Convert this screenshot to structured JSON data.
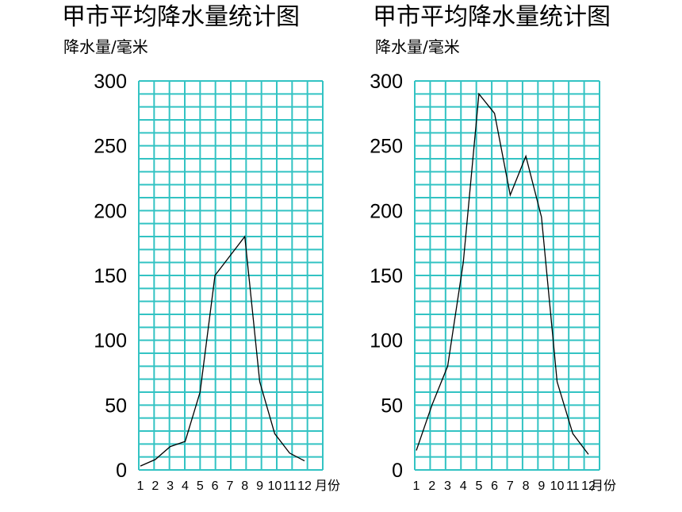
{
  "colors": {
    "grid": "#33c3c3",
    "line": "#000000",
    "background": "#ffffff"
  },
  "chart_data": [
    {
      "type": "line",
      "title": "甲市平均降水量统计图",
      "ylabel": "降水量/毫米",
      "xlabel": "月份",
      "x": [
        1,
        2,
        3,
        4,
        5,
        6,
        7,
        8,
        9,
        10,
        11,
        12
      ],
      "x_tick_labels": [
        "1",
        "2",
        "3",
        "4",
        "5",
        "6",
        "7",
        "8",
        "9",
        "10",
        "11",
        "12"
      ],
      "y_tick_labels": [
        "0",
        "50",
        "100",
        "150",
        "200",
        "250",
        "300"
      ],
      "ylim": [
        0,
        300
      ],
      "grid": true,
      "series": [
        {
          "values": [
            3,
            8,
            18,
            22,
            60,
            150,
            165,
            180,
            68,
            28,
            13,
            7
          ]
        }
      ]
    },
    {
      "type": "line",
      "title": "甲市平均降水量统计图",
      "ylabel": "降水量/毫米",
      "xlabel": "月份",
      "x": [
        1,
        2,
        3,
        4,
        5,
        6,
        7,
        8,
        9,
        10,
        11,
        12
      ],
      "x_tick_labels": [
        "1",
        "2",
        "3",
        "4",
        "5",
        "6",
        "7",
        "8",
        "9",
        "10",
        "11",
        "12"
      ],
      "y_tick_labels": [
        "0",
        "50",
        "100",
        "150",
        "200",
        "250",
        "300"
      ],
      "ylim": [
        0,
        300
      ],
      "grid": true,
      "series": [
        {
          "values": [
            15,
            50,
            80,
            160,
            290,
            275,
            212,
            242,
            195,
            68,
            28,
            12
          ]
        }
      ]
    }
  ]
}
